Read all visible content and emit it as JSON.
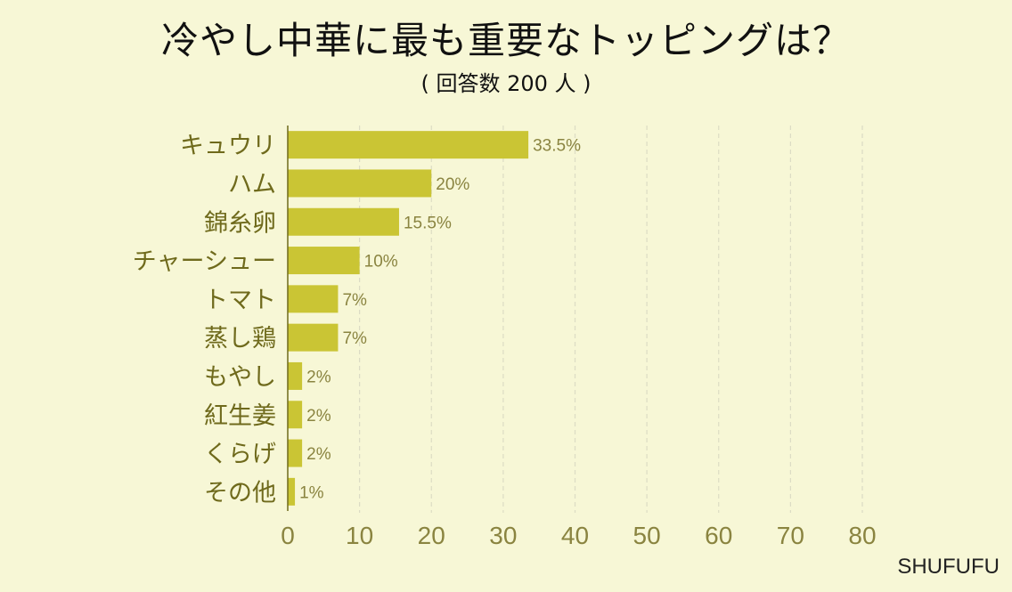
{
  "title": "冷やし中華に最も重要なトッピングは？",
  "subtitle": "( 回答数 200 人 )",
  "brand": "SHUFUFU",
  "colors": {
    "background": "#f7f7d6",
    "bar": "#cac534",
    "label": "#6f6a1c",
    "value": "#8a8440",
    "grid": "#dcdcc4"
  },
  "chart_data": {
    "type": "bar",
    "orientation": "horizontal",
    "categories": [
      "キュウリ",
      "ハム",
      "錦糸卵",
      "チャーシュー",
      "トマト",
      "蒸し鶏",
      "もやし",
      "紅生姜",
      "くらげ",
      "その他"
    ],
    "values": [
      33.5,
      20,
      15.5,
      10,
      7,
      7,
      2,
      2,
      2,
      1
    ],
    "value_labels": [
      "33.5%",
      "20%",
      "15.5%",
      "10%",
      "7%",
      "7%",
      "2%",
      "2%",
      "2%",
      "1%"
    ],
    "xticks": [
      "0",
      "10",
      "20",
      "30",
      "40",
      "50",
      "60",
      "70",
      "80"
    ],
    "xlim": [
      0,
      80
    ],
    "grid": "vertical dashed"
  }
}
